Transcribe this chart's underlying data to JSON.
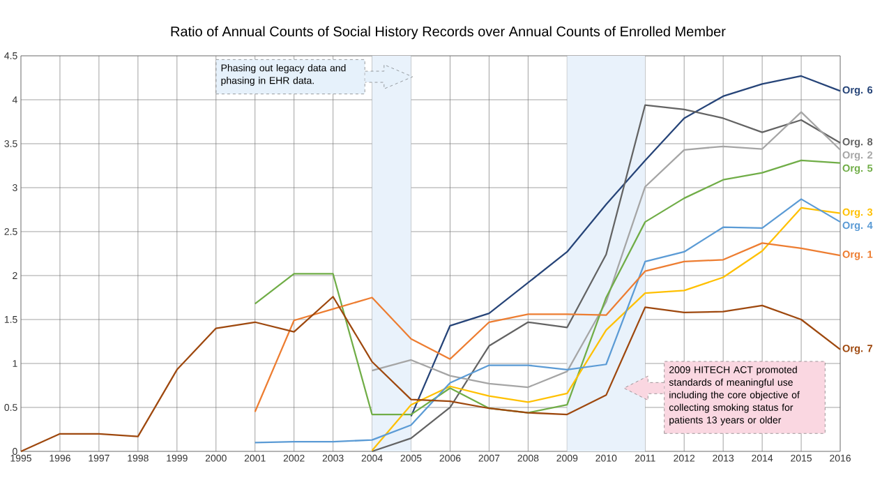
{
  "chart_data": {
    "type": "line",
    "title": "Ratio of Annual Counts of Social History Records over Annual Counts of Enrolled Member",
    "xlim": [
      1995,
      2016
    ],
    "xticks": [
      1995,
      1996,
      1997,
      1998,
      1999,
      2000,
      2001,
      2002,
      2003,
      2004,
      2005,
      2006,
      2007,
      2008,
      2009,
      2010,
      2011,
      2012,
      2013,
      2014,
      2015,
      2016
    ],
    "ylim": [
      0,
      4.5
    ],
    "yticks": [
      0,
      0.5,
      1,
      1.5,
      2,
      2.5,
      3,
      3.5,
      4,
      4.5
    ],
    "grid": true,
    "series": [
      {
        "name": "Org. 6",
        "color": "#264478",
        "x": [
          2005,
          2006,
          2007,
          2008,
          2009,
          2010,
          2011,
          2012,
          2013,
          2014,
          2015,
          2016
        ],
        "values": [
          0.4,
          1.43,
          1.57,
          1.92,
          2.27,
          2.81,
          3.31,
          3.79,
          4.04,
          4.18,
          4.27,
          4.1
        ]
      },
      {
        "name": "Org. 8",
        "color": "#636363",
        "x": [
          2004,
          2005,
          2006,
          2007,
          2008,
          2009,
          2010,
          2011,
          2012,
          2013,
          2014,
          2015,
          2016
        ],
        "values": [
          0,
          0.15,
          0.5,
          1.2,
          1.47,
          1.41,
          2.24,
          3.94,
          3.89,
          3.79,
          3.63,
          3.77,
          3.51
        ]
      },
      {
        "name": "Org. 2",
        "color": "#a5a5a5",
        "x": [
          2004,
          2005,
          2006,
          2007,
          2008,
          2009,
          2010,
          2011,
          2012,
          2013,
          2014,
          2015,
          2016
        ],
        "values": [
          0.92,
          1.04,
          0.86,
          0.77,
          0.73,
          0.91,
          1.7,
          3.01,
          3.43,
          3.47,
          3.44,
          3.86,
          3.43
        ]
      },
      {
        "name": "Org. 5",
        "color": "#70ad47",
        "x": [
          2001,
          2002,
          2003,
          2004,
          2005,
          2006,
          2007,
          2008,
          2009,
          2010,
          2011,
          2012,
          2013,
          2014,
          2015,
          2016
        ],
        "values": [
          1.68,
          2.02,
          2.02,
          0.42,
          0.42,
          0.72,
          0.49,
          0.44,
          0.53,
          1.75,
          2.61,
          2.88,
          3.09,
          3.17,
          3.31,
          3.28
        ]
      },
      {
        "name": "Org. 3",
        "color": "#ffc000",
        "x": [
          2004,
          2005,
          2006,
          2007,
          2008,
          2009,
          2010,
          2011,
          2012,
          2013,
          2014,
          2015,
          2016
        ],
        "values": [
          0.01,
          0.53,
          0.74,
          0.63,
          0.56,
          0.66,
          1.38,
          1.8,
          1.83,
          1.98,
          2.28,
          2.77,
          2.71
        ]
      },
      {
        "name": "Org. 4",
        "color": "#5b9bd5",
        "x": [
          2001,
          2002,
          2003,
          2004,
          2005,
          2006,
          2007,
          2008,
          2009,
          2010,
          2011,
          2012,
          2013,
          2014,
          2015,
          2016
        ],
        "values": [
          0.1,
          0.11,
          0.11,
          0.13,
          0.3,
          0.78,
          0.98,
          0.98,
          0.93,
          0.99,
          2.16,
          2.27,
          2.55,
          2.54,
          2.87,
          2.61
        ]
      },
      {
        "name": "Org. 1",
        "color": "#ed7d31",
        "x": [
          2001,
          2002,
          2003,
          2004,
          2005,
          2006,
          2007,
          2008,
          2009,
          2010,
          2011,
          2012,
          2013,
          2014,
          2015,
          2016
        ],
        "values": [
          0.45,
          1.49,
          1.62,
          1.75,
          1.28,
          1.05,
          1.47,
          1.56,
          1.56,
          1.55,
          2.05,
          2.16,
          2.18,
          2.37,
          2.31,
          2.23
        ]
      },
      {
        "name": "Org. 7",
        "color": "#9e480e",
        "x": [
          1995,
          1996,
          1997,
          1998,
          1999,
          2000,
          2001,
          2002,
          2003,
          2004,
          2005,
          2006,
          2007,
          2008,
          2009,
          2010,
          2011,
          2012,
          2013,
          2014,
          2015,
          2016
        ],
        "values": [
          0,
          0.2,
          0.2,
          0.17,
          0.93,
          1.4,
          1.47,
          1.36,
          1.76,
          1.02,
          0.59,
          0.57,
          0.49,
          0.44,
          0.42,
          0.64,
          1.64,
          1.58,
          1.59,
          1.66,
          1.5,
          1.16
        ]
      }
    ],
    "bands": [
      {
        "axis": "x",
        "from": 2004,
        "to": 2005,
        "color": "#e9f2fb"
      },
      {
        "axis": "x",
        "from": 2009,
        "to": 2011,
        "color": "#e9f2fb"
      }
    ],
    "annotations": [
      "Phasing out legacy data and phasing in EHR data.",
      "2009 HITECH ACT promoted standards of meaningful use including the core objective of collecting smoking status for patients 13 years or older"
    ]
  }
}
